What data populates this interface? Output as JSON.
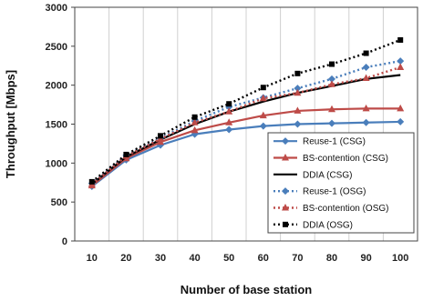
{
  "chart_data": {
    "type": "line",
    "xlabel": "Number of base station",
    "ylabel": "Throughput [Mbps]",
    "x": [
      10,
      20,
      30,
      40,
      50,
      60,
      70,
      80,
      90,
      100
    ],
    "ylim": [
      0,
      3000
    ],
    "yticks": [
      0,
      500,
      1000,
      1500,
      2000,
      2500,
      3000
    ],
    "grid": "vertical",
    "legend_position": "bottom-right",
    "series": [
      {
        "name": "Reuse-1 (CSG)",
        "color": "#4a7ebb",
        "dash": "solid",
        "marker": "diamond",
        "values": [
          700,
          1040,
          1230,
          1370,
          1430,
          1475,
          1500,
          1510,
          1520,
          1530
        ]
      },
      {
        "name": "BS-contention (CSG)",
        "color": "#be4b48",
        "dash": "solid",
        "marker": "triangle",
        "values": [
          710,
          1060,
          1270,
          1420,
          1520,
          1610,
          1670,
          1690,
          1700,
          1700
        ]
      },
      {
        "name": "DDIA (CSG)",
        "color": "#000000",
        "dash": "solid",
        "marker": "none",
        "values": [
          730,
          1080,
          1300,
          1500,
          1660,
          1790,
          1900,
          1990,
          2080,
          2130
        ]
      },
      {
        "name": "Reuse-1 (OSG)",
        "color": "#4a7ebb",
        "dash": "dotted",
        "marker": "diamond",
        "values": [
          740,
          1100,
          1320,
          1540,
          1720,
          1840,
          1960,
          2080,
          2230,
          2310
        ]
      },
      {
        "name": "BS-contention (OSG)",
        "color": "#be4b48",
        "dash": "dotted",
        "marker": "triangle",
        "values": [
          730,
          1090,
          1310,
          1520,
          1660,
          1830,
          1900,
          2010,
          2090,
          2230
        ]
      },
      {
        "name": "DDIA (OSG)",
        "color": "#000000",
        "dash": "dotted",
        "marker": "square",
        "values": [
          760,
          1110,
          1350,
          1590,
          1760,
          1970,
          2150,
          2270,
          2410,
          2580
        ]
      }
    ]
  }
}
